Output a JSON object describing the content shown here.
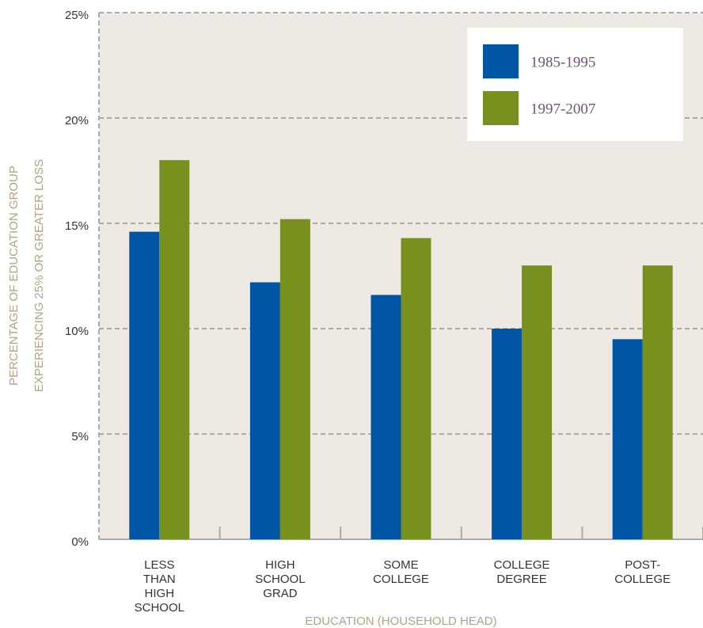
{
  "chart_data": {
    "type": "bar",
    "categories": [
      "LESS\nTHAN\nHIGH\nSCHOOL",
      "HIGH\nSCHOOL\nGRAD",
      "SOME\nCOLLEGE",
      "COLLEGE\nDEGREE",
      "POST-\nCOLLEGE"
    ],
    "series": [
      {
        "name": "1985-1995",
        "color": "#0055a5",
        "values": [
          14.6,
          12.2,
          11.6,
          10.0,
          9.5
        ]
      },
      {
        "name": "1997-2007",
        "color": "#78901e",
        "values": [
          18.0,
          15.2,
          14.3,
          13.0,
          13.0
        ]
      }
    ],
    "x_label": "EDUCATION (HOUSEHOLD HEAD)",
    "y_label": "PERCENTAGE OF EDUCATION GROUP\nEXPERIENCING 25% OR GREATER LOSS",
    "ylim": [
      0,
      25
    ],
    "yticks": [
      {
        "value": 0,
        "label": "0%"
      },
      {
        "value": 5,
        "label": "5%"
      },
      {
        "value": 10,
        "label": "10%"
      },
      {
        "value": 15,
        "label": "15%"
      },
      {
        "value": 20,
        "label": "20%"
      },
      {
        "value": 25,
        "label": "25%"
      }
    ],
    "grid": true,
    "legend": "top-right"
  }
}
